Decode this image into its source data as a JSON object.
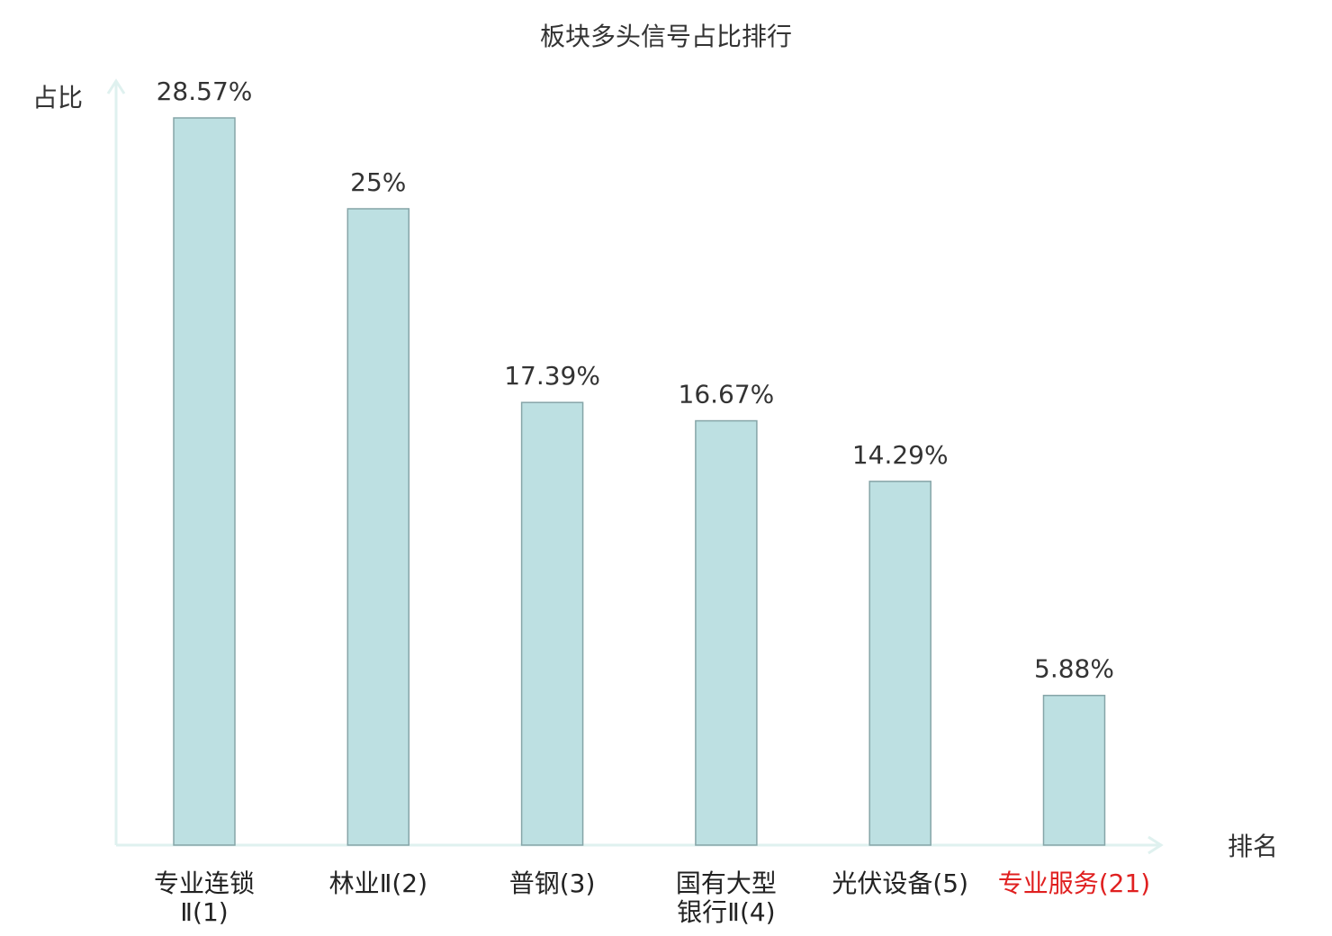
{
  "chart_data": {
    "type": "bar",
    "title": "板块多头信号占比排行",
    "y_label": "占比",
    "x_label": "排名",
    "categories": [
      "专业连锁\nⅡ(1)",
      "林业Ⅱ(2)",
      "普钢(3)",
      "国有大型\n银行Ⅱ(4)",
      "光伏设备(5)",
      "专业服务(21)"
    ],
    "category_colors": [
      "#222222",
      "#222222",
      "#222222",
      "#222222",
      "#222222",
      "#e02020"
    ],
    "values": [
      28.57,
      25,
      17.39,
      16.67,
      14.29,
      5.88
    ],
    "value_labels": [
      "28.57%",
      "25%",
      "17.39%",
      "16.67%",
      "14.29%",
      "5.88%"
    ],
    "color": "#bde0e2",
    "edge_color": "#86a5a8",
    "axis_color": "#dff1ef"
  }
}
